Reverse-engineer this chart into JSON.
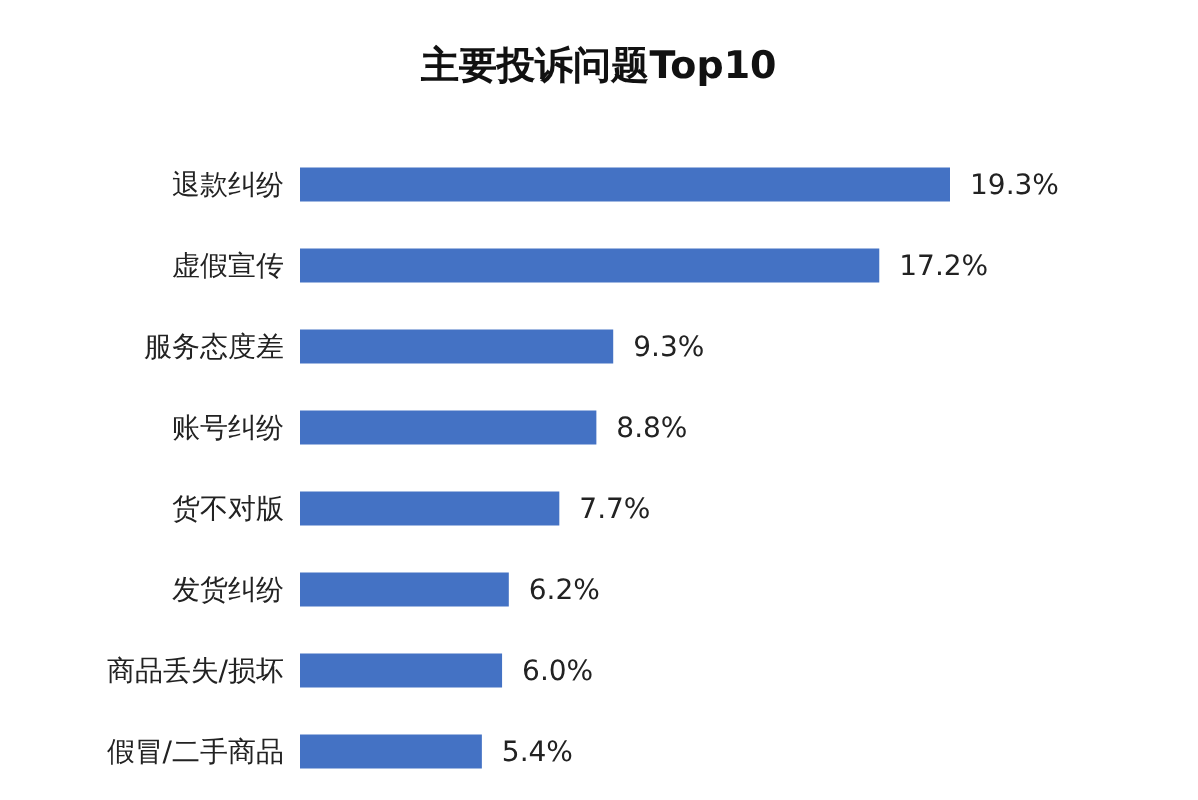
{
  "chart_data": {
    "type": "bar",
    "orientation": "horizontal",
    "title": "主要投诉问题Top10",
    "categories": [
      "退款纠纷",
      "虚假宣传",
      "服务态度差",
      "账号纠纷",
      "货不对版",
      "发货纠纷",
      "商品丢失/损坏",
      "假冒/二手商品"
    ],
    "values": [
      19.3,
      17.2,
      9.3,
      8.8,
      7.7,
      6.2,
      6.0,
      5.4
    ],
    "value_labels": [
      "19.3%",
      "17.2%",
      "9.3%",
      "8.8%",
      "7.7%",
      "6.2%",
      "6.0%",
      "5.4%"
    ],
    "color": "#4472c4"
  }
}
